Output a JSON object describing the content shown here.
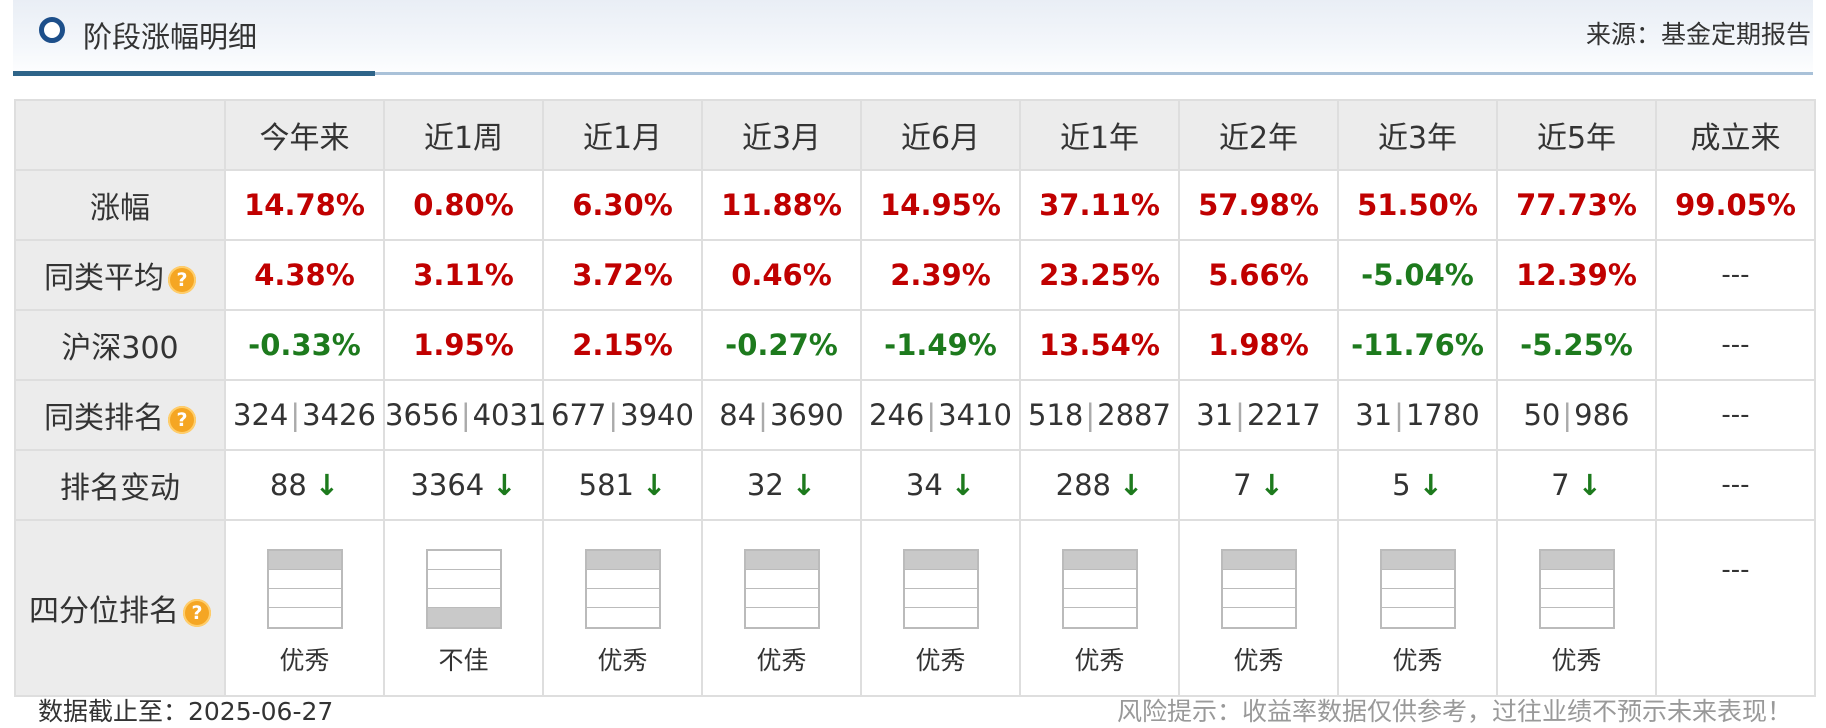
{
  "header": {
    "title": "阶段涨幅明细",
    "source": "来源：基金定期报告"
  },
  "table": {
    "columns": [
      "今年来",
      "近1周",
      "近1月",
      "近3月",
      "近6月",
      "近1年",
      "近2年",
      "近3年",
      "近5年",
      "成立来"
    ],
    "rows": {
      "gain": {
        "label": "涨幅",
        "values": [
          "14.78%",
          "0.80%",
          "6.30%",
          "11.88%",
          "14.95%",
          "37.11%",
          "57.98%",
          "51.50%",
          "77.73%",
          "99.05%"
        ]
      },
      "peer_avg": {
        "label": "同类平均",
        "values": [
          "4.38%",
          "3.11%",
          "3.72%",
          "0.46%",
          "2.39%",
          "23.25%",
          "5.66%",
          "-5.04%",
          "12.39%",
          "---"
        ]
      },
      "hs300": {
        "label": "沪深300",
        "values": [
          "-0.33%",
          "1.95%",
          "2.15%",
          "-0.27%",
          "-1.49%",
          "13.54%",
          "1.98%",
          "-11.76%",
          "-5.25%",
          "---"
        ]
      },
      "peer_rank": {
        "label": "同类排名",
        "values": [
          {
            "rank": "324",
            "total": "3426"
          },
          {
            "rank": "3656",
            "total": "4031"
          },
          {
            "rank": "677",
            "total": "3940"
          },
          {
            "rank": "84",
            "total": "3690"
          },
          {
            "rank": "246",
            "total": "3410"
          },
          {
            "rank": "518",
            "total": "2887"
          },
          {
            "rank": "31",
            "total": "2217"
          },
          {
            "rank": "31",
            "total": "1780"
          },
          {
            "rank": "50",
            "total": "986"
          },
          {
            "rank": "---",
            "total": ""
          }
        ]
      },
      "rank_change": {
        "label": "排名变动",
        "values": [
          "88",
          "3364",
          "581",
          "32",
          "34",
          "288",
          "7",
          "5",
          "7",
          "---"
        ],
        "direction_icon": "arrow-down-icon"
      },
      "quartile": {
        "label": "四分位排名",
        "values": [
          {
            "label": "优秀",
            "quartile": 1
          },
          {
            "label": "不佳",
            "quartile": 4
          },
          {
            "label": "优秀",
            "quartile": 1
          },
          {
            "label": "优秀",
            "quartile": 1
          },
          {
            "label": "优秀",
            "quartile": 1
          },
          {
            "label": "优秀",
            "quartile": 1
          },
          {
            "label": "优秀",
            "quartile": 1
          },
          {
            "label": "优秀",
            "quartile": 1
          },
          {
            "label": "优秀",
            "quartile": 1
          },
          {
            "label": "---",
            "quartile": 0
          }
        ]
      }
    }
  },
  "footer": {
    "data_date": "数据截止至：2025-06-27",
    "risk_note": "风险提示：收益率数据仅供参考，过往业绩不预示未来表现！"
  },
  "colors": {
    "positive": "#c00000",
    "negative": "#1d7a1d",
    "header_accent": "#2e6489",
    "help_icon": "#f5a623"
  },
  "icons": {
    "title_bullet": "circle-bullet-icon",
    "help": "question-mark-icon"
  }
}
